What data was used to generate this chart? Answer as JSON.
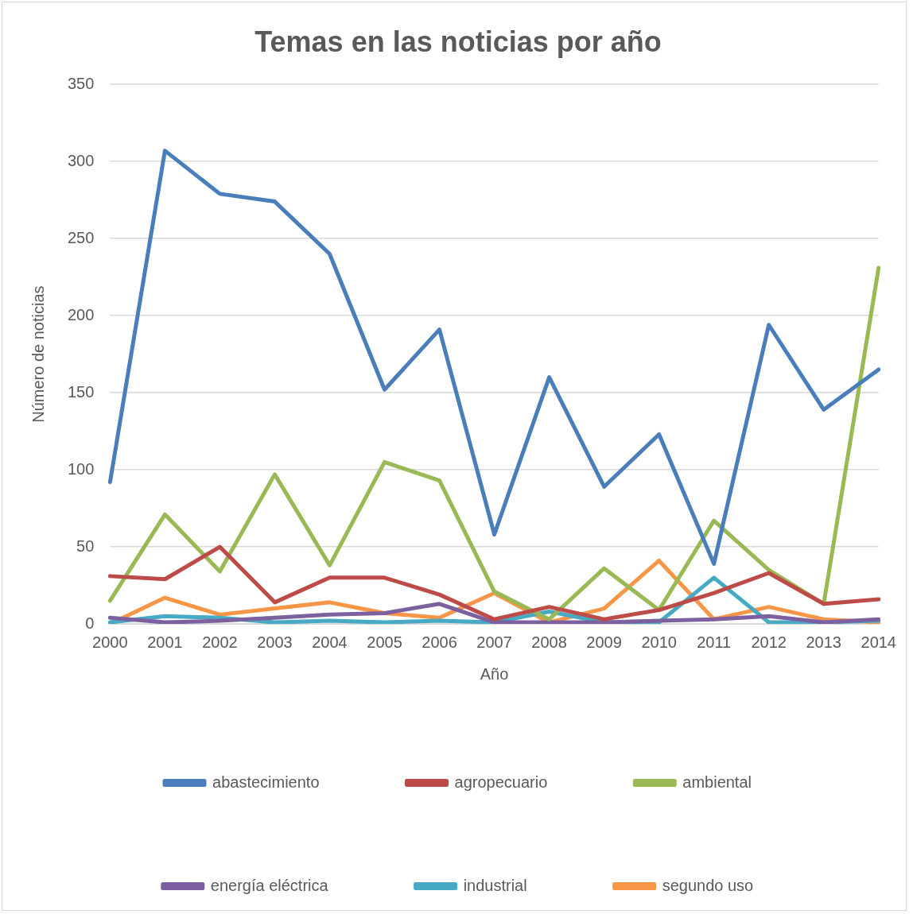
{
  "chart_data": {
    "type": "line",
    "title": "Temas en las noticias por año",
    "xlabel": "Año",
    "ylabel": "Número de noticias",
    "categories": [
      "2000",
      "2001",
      "2002",
      "2003",
      "2004",
      "2005",
      "2006",
      "2007",
      "2008",
      "2009",
      "2010",
      "2011",
      "2012",
      "2013",
      "2014"
    ],
    "series": [
      {
        "name": "abastecimiento",
        "color": "#4a7ebb",
        "values": [
          92,
          307,
          279,
          274,
          240,
          152,
          191,
          58,
          160,
          89,
          123,
          39,
          194,
          139,
          165
        ]
      },
      {
        "name": "agropecuario",
        "color": "#be4b48",
        "values": [
          31,
          29,
          50,
          14,
          30,
          30,
          19,
          3,
          11,
          3,
          9,
          20,
          33,
          13,
          16
        ]
      },
      {
        "name": "ambiental",
        "color": "#98b954",
        "values": [
          15,
          71,
          34,
          97,
          38,
          105,
          93,
          21,
          3,
          36,
          9,
          67,
          35,
          13,
          231
        ]
      },
      {
        "name": "energía eléctrica",
        "color": "#7d60a0",
        "values": [
          4,
          1,
          2,
          4,
          6,
          7,
          13,
          1,
          1,
          1,
          2,
          3,
          5,
          1,
          3
        ]
      },
      {
        "name": "industrial",
        "color": "#46aac5",
        "values": [
          1,
          5,
          4,
          1,
          2,
          1,
          2,
          1,
          8,
          1,
          1,
          30,
          1,
          1,
          2
        ]
      },
      {
        "name": "segundo uso",
        "color": "#f79646",
        "values": [
          0,
          17,
          6,
          10,
          14,
          7,
          4,
          20,
          1,
          10,
          41,
          3,
          11,
          3,
          1
        ]
      }
    ],
    "ylim": [
      0,
      350
    ],
    "yticks": [
      0,
      50,
      100,
      150,
      200,
      250,
      300,
      350
    ],
    "grid": "y",
    "legend": "bottom",
    "marker": "none",
    "line_style": "solid"
  }
}
